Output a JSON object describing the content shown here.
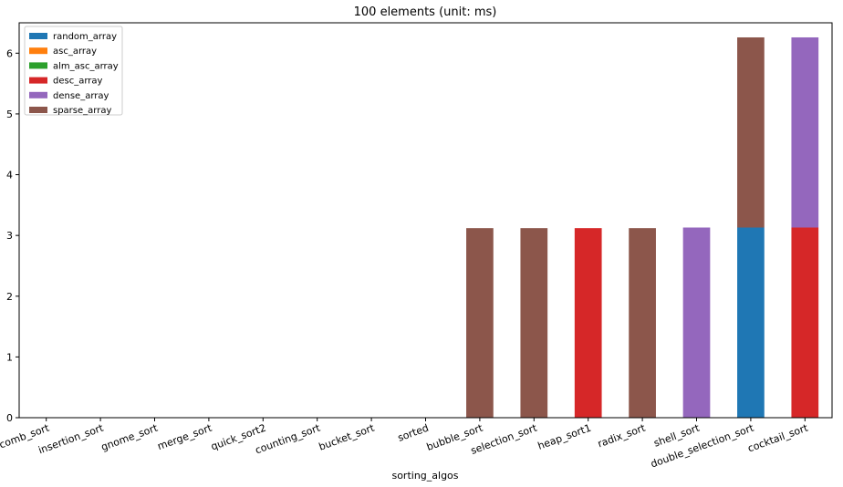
{
  "chart_data": {
    "type": "bar",
    "stacked": true,
    "title": "100 elements (unit: ms)",
    "xlabel": "sorting_algos",
    "ylabel": "",
    "ylim": [
      0,
      6.5
    ],
    "yticks": [
      0,
      1,
      2,
      3,
      4,
      5,
      6
    ],
    "grid": false,
    "legend_position": "top-left",
    "categories": [
      "comb_sort",
      "insertion_sort",
      "gnome_sort",
      "merge_sort",
      "quick_sort2",
      "counting_sort",
      "bucket_sort",
      "sorted",
      "bubble_sort",
      "selection_sort",
      "heap_sort1",
      "radix_sort",
      "shell_sort",
      "double_selection_sort",
      "cocktail_sort"
    ],
    "series": [
      {
        "name": "random_array",
        "color": "#1f77b4",
        "values": [
          0,
          0,
          0,
          0,
          0,
          0,
          0,
          0,
          0,
          0,
          0,
          0,
          0,
          3.13,
          0
        ]
      },
      {
        "name": "asc_array",
        "color": "#ff7f0e",
        "values": [
          0,
          0,
          0,
          0,
          0,
          0,
          0,
          0,
          0,
          0,
          0,
          0,
          0,
          0,
          0
        ]
      },
      {
        "name": "alm_asc_array",
        "color": "#2ca02c",
        "values": [
          0,
          0,
          0,
          0,
          0,
          0,
          0,
          0,
          0,
          0,
          0,
          0,
          0,
          0,
          0
        ]
      },
      {
        "name": "desc_array",
        "color": "#d62728",
        "values": [
          0,
          0,
          0,
          0,
          0,
          0,
          0,
          0,
          0,
          0,
          3.12,
          0,
          0,
          0,
          3.13
        ]
      },
      {
        "name": "dense_array",
        "color": "#9467bd",
        "values": [
          0,
          0,
          0,
          0,
          0,
          0,
          0,
          0,
          0,
          0,
          0,
          0,
          3.13,
          0,
          3.13
        ]
      },
      {
        "name": "sparse_array",
        "color": "#8c564b",
        "values": [
          0,
          0,
          0,
          0,
          0,
          0,
          0,
          0,
          3.12,
          3.12,
          0,
          3.12,
          0,
          3.13,
          0
        ]
      }
    ]
  }
}
